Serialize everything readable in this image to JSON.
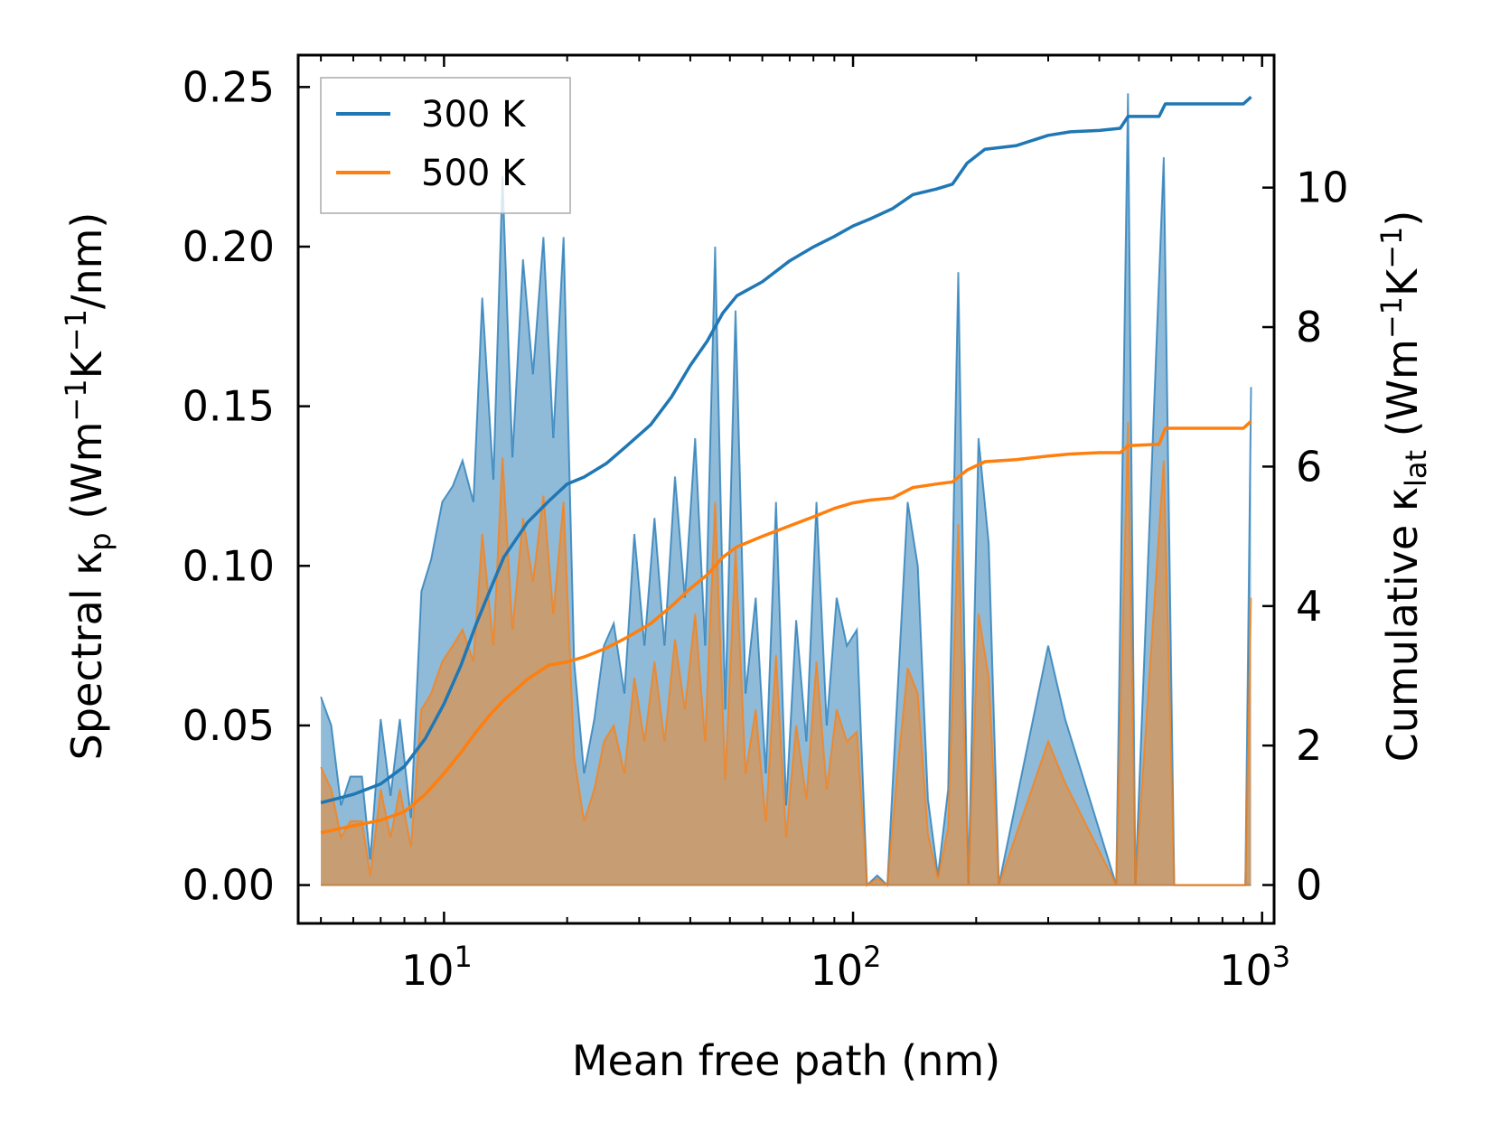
{
  "chart_data": {
    "type": "line",
    "x_scale": "log",
    "xlabel": "Mean free path (nm)",
    "xlim": [
      4.4,
      1070
    ],
    "ylabel_left": {
      "main": "Spectral κ",
      "sub": "p",
      "unit_pre": " (Wm",
      "sup1": "−1",
      "mid": "K",
      "sup2": "−1",
      "unit_post": "/nm)"
    },
    "ylabel_right": {
      "main": "Cumulative κ",
      "sub": "lat",
      "unit_pre": " (Wm",
      "sup1": "−1",
      "mid": "K",
      "sup2": "−1",
      "unit_post": ")"
    },
    "ylim_left": [
      -0.012,
      0.26
    ],
    "ylim_right": [
      -0.55,
      11.9
    ],
    "x_ticks": [
      {
        "base": "10",
        "exp": "1",
        "value": 10
      },
      {
        "base": "10",
        "exp": "2",
        "value": 100
      },
      {
        "base": "10",
        "exp": "3",
        "value": 1000
      }
    ],
    "y_ticks_left": [
      {
        "label": "0.00",
        "value": 0
      },
      {
        "label": "0.05",
        "value": 0.05
      },
      {
        "label": "0.10",
        "value": 0.1
      },
      {
        "label": "0.15",
        "value": 0.15
      },
      {
        "label": "0.20",
        "value": 0.2
      },
      {
        "label": "0.25",
        "value": 0.25
      }
    ],
    "y_ticks_right": [
      {
        "label": "0",
        "value": 0
      },
      {
        "label": "2",
        "value": 2
      },
      {
        "label": "4",
        "value": 4
      },
      {
        "label": "6",
        "value": 6
      },
      {
        "label": "8",
        "value": 8
      },
      {
        "label": "10",
        "value": 10
      }
    ],
    "legend": {
      "position": "upper-left"
    },
    "colors": {
      "series_300": "#1f77b4",
      "series_500": "#ff7f0e"
    },
    "series": [
      {
        "name": "300 K",
        "spectral": [
          [
            5.0,
            0.059
          ],
          [
            5.3,
            0.05
          ],
          [
            5.6,
            0.025
          ],
          [
            5.9,
            0.034
          ],
          [
            6.3,
            0.034
          ],
          [
            6.6,
            0.008
          ],
          [
            7.0,
            0.052
          ],
          [
            7.4,
            0.028
          ],
          [
            7.8,
            0.052
          ],
          [
            8.3,
            0.021
          ],
          [
            8.8,
            0.092
          ],
          [
            9.3,
            0.102
          ],
          [
            9.9,
            0.12
          ],
          [
            10.5,
            0.125
          ],
          [
            11.1,
            0.133
          ],
          [
            11.8,
            0.12
          ],
          [
            12.4,
            0.184
          ],
          [
            13.2,
            0.127
          ],
          [
            13.9,
            0.222
          ],
          [
            14.7,
            0.134
          ],
          [
            15.6,
            0.196
          ],
          [
            16.5,
            0.16
          ],
          [
            17.5,
            0.203
          ],
          [
            18.5,
            0.14
          ],
          [
            19.6,
            0.203
          ],
          [
            20.8,
            0.07
          ],
          [
            22.0,
            0.035
          ],
          [
            23.3,
            0.052
          ],
          [
            24.6,
            0.075
          ],
          [
            26.0,
            0.082
          ],
          [
            27.6,
            0.06
          ],
          [
            29.2,
            0.11
          ],
          [
            30.9,
            0.075
          ],
          [
            32.7,
            0.115
          ],
          [
            34.6,
            0.075
          ],
          [
            36.7,
            0.128
          ],
          [
            38.8,
            0.09
          ],
          [
            41.1,
            0.14
          ],
          [
            43.5,
            0.075
          ],
          [
            46.0,
            0.2
          ],
          [
            48.7,
            0.055
          ],
          [
            51.6,
            0.18
          ],
          [
            54.6,
            0.06
          ],
          [
            57.8,
            0.09
          ],
          [
            61.2,
            0.035
          ],
          [
            64.8,
            0.12
          ],
          [
            68.6,
            0.025
          ],
          [
            72.6,
            0.083
          ],
          [
            76.9,
            0.045
          ],
          [
            81.4,
            0.12
          ],
          [
            86.2,
            0.05
          ],
          [
            91.2,
            0.09
          ],
          [
            96.6,
            0.075
          ],
          [
            102.2,
            0.08
          ],
          [
            108.2,
            0.0
          ],
          [
            114.6,
            0.003
          ],
          [
            121.3,
            0.0
          ],
          [
            128.4,
            0.06
          ],
          [
            136.0,
            0.12
          ],
          [
            144.0,
            0.1
          ],
          [
            152.4,
            0.027
          ],
          [
            161.3,
            0.003
          ],
          [
            170.8,
            0.03
          ],
          [
            180.8,
            0.192
          ],
          [
            191.4,
            0.0
          ],
          [
            202.7,
            0.14
          ],
          [
            214.6,
            0.107
          ],
          [
            227.2,
            0.0
          ],
          [
            300.0,
            0.075
          ],
          [
            330.0,
            0.052
          ],
          [
            440.0,
            0.0
          ],
          [
            470.0,
            0.248
          ],
          [
            490.0,
            0.0
          ],
          [
            575.0,
            0.228
          ],
          [
            610.0,
            0.0
          ],
          [
            910.0,
            0.0
          ],
          [
            940.0,
            0.156
          ]
        ],
        "cumulative": [
          [
            5.0,
            1.18
          ],
          [
            6.0,
            1.3
          ],
          [
            7.0,
            1.45
          ],
          [
            8.0,
            1.7
          ],
          [
            9.0,
            2.1
          ],
          [
            10.0,
            2.6
          ],
          [
            11.0,
            3.15
          ],
          [
            12.0,
            3.75
          ],
          [
            13.0,
            4.25
          ],
          [
            14.0,
            4.7
          ],
          [
            16.0,
            5.2
          ],
          [
            18.0,
            5.5
          ],
          [
            20.0,
            5.75
          ],
          [
            22.0,
            5.85
          ],
          [
            25.0,
            6.05
          ],
          [
            28.0,
            6.3
          ],
          [
            32.0,
            6.6
          ],
          [
            36.0,
            7.0
          ],
          [
            40.0,
            7.45
          ],
          [
            44.0,
            7.8
          ],
          [
            48.0,
            8.2
          ],
          [
            52.0,
            8.45
          ],
          [
            60.0,
            8.65
          ],
          [
            70.0,
            8.95
          ],
          [
            80.0,
            9.15
          ],
          [
            90.0,
            9.3
          ],
          [
            100.0,
            9.45
          ],
          [
            110.0,
            9.55
          ],
          [
            125.0,
            9.7
          ],
          [
            140.0,
            9.9
          ],
          [
            160.0,
            9.98
          ],
          [
            175.0,
            10.05
          ],
          [
            190.0,
            10.35
          ],
          [
            210.0,
            10.55
          ],
          [
            250.0,
            10.6
          ],
          [
            300.0,
            10.75
          ],
          [
            340.0,
            10.8
          ],
          [
            400.0,
            10.82
          ],
          [
            450.0,
            10.85
          ],
          [
            470.0,
            11.02
          ],
          [
            560.0,
            11.02
          ],
          [
            580.0,
            11.2
          ],
          [
            900.0,
            11.2
          ],
          [
            940.0,
            11.3
          ]
        ]
      },
      {
        "name": "500 K",
        "spectral": [
          [
            5.0,
            0.037
          ],
          [
            5.3,
            0.03
          ],
          [
            5.6,
            0.015
          ],
          [
            5.9,
            0.02
          ],
          [
            6.3,
            0.02
          ],
          [
            6.6,
            0.003
          ],
          [
            7.0,
            0.03
          ],
          [
            7.4,
            0.015
          ],
          [
            7.8,
            0.03
          ],
          [
            8.3,
            0.012
          ],
          [
            8.8,
            0.055
          ],
          [
            9.3,
            0.06
          ],
          [
            9.9,
            0.07
          ],
          [
            10.5,
            0.075
          ],
          [
            11.1,
            0.08
          ],
          [
            11.8,
            0.07
          ],
          [
            12.4,
            0.11
          ],
          [
            13.2,
            0.075
          ],
          [
            13.9,
            0.134
          ],
          [
            14.7,
            0.08
          ],
          [
            15.6,
            0.115
          ],
          [
            16.5,
            0.095
          ],
          [
            17.5,
            0.122
          ],
          [
            18.5,
            0.085
          ],
          [
            19.6,
            0.12
          ],
          [
            20.8,
            0.04
          ],
          [
            22.0,
            0.02
          ],
          [
            23.3,
            0.03
          ],
          [
            24.6,
            0.045
          ],
          [
            26.0,
            0.05
          ],
          [
            27.6,
            0.035
          ],
          [
            29.2,
            0.065
          ],
          [
            30.9,
            0.045
          ],
          [
            32.7,
            0.07
          ],
          [
            34.6,
            0.045
          ],
          [
            36.7,
            0.077
          ],
          [
            38.8,
            0.055
          ],
          [
            41.1,
            0.085
          ],
          [
            43.5,
            0.045
          ],
          [
            46.0,
            0.12
          ],
          [
            48.7,
            0.033
          ],
          [
            51.6,
            0.105
          ],
          [
            54.6,
            0.035
          ],
          [
            57.8,
            0.055
          ],
          [
            61.2,
            0.02
          ],
          [
            64.8,
            0.072
          ],
          [
            68.6,
            0.015
          ],
          [
            72.6,
            0.05
          ],
          [
            76.9,
            0.027
          ],
          [
            81.4,
            0.07
          ],
          [
            86.2,
            0.03
          ],
          [
            91.2,
            0.055
          ],
          [
            96.6,
            0.045
          ],
          [
            102.2,
            0.048
          ],
          [
            108.2,
            0.0
          ],
          [
            114.6,
            0.002
          ],
          [
            121.3,
            0.0
          ],
          [
            128.4,
            0.036
          ],
          [
            136.0,
            0.068
          ],
          [
            144.0,
            0.06
          ],
          [
            152.4,
            0.016
          ],
          [
            161.3,
            0.002
          ],
          [
            170.8,
            0.018
          ],
          [
            180.8,
            0.113
          ],
          [
            191.4,
            0.0
          ],
          [
            202.7,
            0.085
          ],
          [
            214.6,
            0.065
          ],
          [
            227.2,
            0.0
          ],
          [
            300.0,
            0.045
          ],
          [
            330.0,
            0.032
          ],
          [
            440.0,
            0.0
          ],
          [
            470.0,
            0.145
          ],
          [
            490.0,
            0.0
          ],
          [
            575.0,
            0.133
          ],
          [
            610.0,
            0.0
          ],
          [
            910.0,
            0.0
          ],
          [
            940.0,
            0.09
          ]
        ],
        "cumulative": [
          [
            5.0,
            0.75
          ],
          [
            6.0,
            0.85
          ],
          [
            7.0,
            0.93
          ],
          [
            8.0,
            1.05
          ],
          [
            9.0,
            1.3
          ],
          [
            10.0,
            1.6
          ],
          [
            11.0,
            1.9
          ],
          [
            12.0,
            2.2
          ],
          [
            13.0,
            2.45
          ],
          [
            14.0,
            2.65
          ],
          [
            16.0,
            2.95
          ],
          [
            18.0,
            3.15
          ],
          [
            20.0,
            3.2
          ],
          [
            22.0,
            3.27
          ],
          [
            25.0,
            3.4
          ],
          [
            28.0,
            3.55
          ],
          [
            32.0,
            3.75
          ],
          [
            36.0,
            4.0
          ],
          [
            40.0,
            4.25
          ],
          [
            44.0,
            4.45
          ],
          [
            48.0,
            4.7
          ],
          [
            52.0,
            4.85
          ],
          [
            60.0,
            5.0
          ],
          [
            70.0,
            5.15
          ],
          [
            80.0,
            5.28
          ],
          [
            90.0,
            5.4
          ],
          [
            100.0,
            5.48
          ],
          [
            110.0,
            5.52
          ],
          [
            125.0,
            5.55
          ],
          [
            140.0,
            5.7
          ],
          [
            160.0,
            5.75
          ],
          [
            175.0,
            5.78
          ],
          [
            190.0,
            5.95
          ],
          [
            210.0,
            6.07
          ],
          [
            250.0,
            6.1
          ],
          [
            300.0,
            6.15
          ],
          [
            340.0,
            6.18
          ],
          [
            400.0,
            6.2
          ],
          [
            450.0,
            6.2
          ],
          [
            470.0,
            6.3
          ],
          [
            560.0,
            6.32
          ],
          [
            580.0,
            6.55
          ],
          [
            900.0,
            6.55
          ],
          [
            940.0,
            6.65
          ]
        ]
      }
    ]
  }
}
